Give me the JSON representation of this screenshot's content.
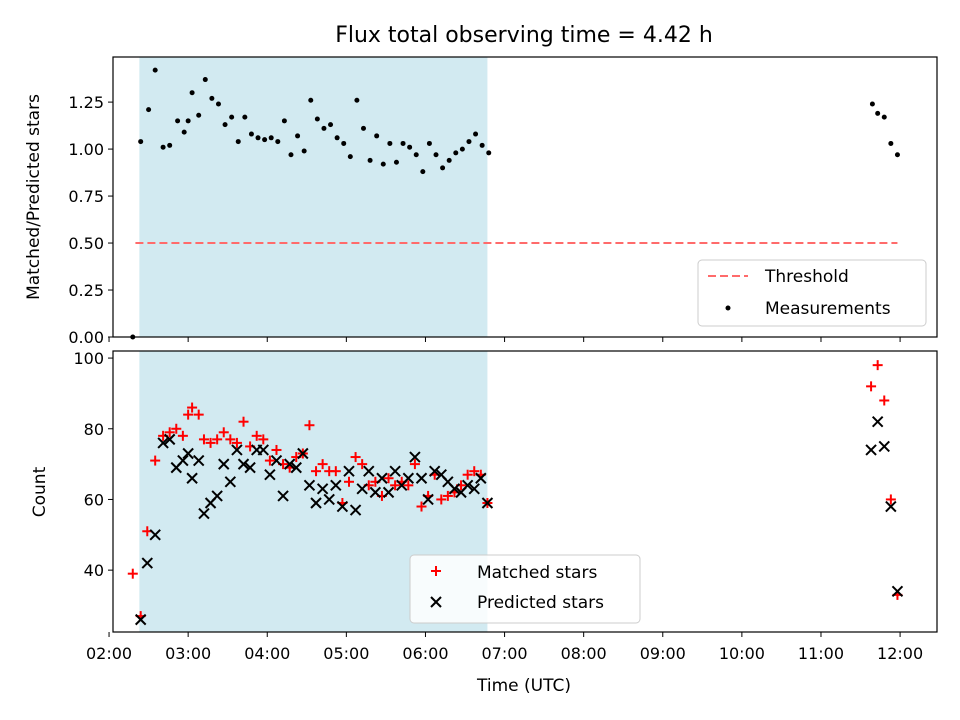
{
  "title": "Flux total observing time = 4.42 h",
  "colors": {
    "threshold": "#ff6b6b",
    "band": "#add8e6",
    "matched": "#ff0000",
    "predicted": "#000000"
  },
  "shaded_interval": [
    "02:23",
    "06:47"
  ],
  "chart_data": [
    {
      "type": "scatter",
      "ylabel": "Matched/Predicted stars",
      "xlim": [
        "02:03",
        "12:28"
      ],
      "ylim": [
        0,
        1.49
      ],
      "yticks": [
        "0.00",
        "0.25",
        "0.50",
        "0.75",
        "1.00",
        "1.25"
      ],
      "grid": false,
      "legend_position": "lower-right",
      "threshold": {
        "name": "Threshold",
        "y": 0.5,
        "x_range": [
          "02:20",
          "11:58"
        ]
      },
      "series": [
        {
          "name": "Measurements",
          "points": [
            [
              "02:18",
              0.0
            ],
            [
              "02:24",
              1.04
            ],
            [
              "02:30",
              1.21
            ],
            [
              "02:35",
              1.42
            ],
            [
              "02:41",
              1.01
            ],
            [
              "02:46",
              1.02
            ],
            [
              "02:52",
              1.15
            ],
            [
              "02:57",
              1.09
            ],
            [
              "03:00",
              1.15
            ],
            [
              "03:03",
              1.3
            ],
            [
              "03:08",
              1.18
            ],
            [
              "03:13",
              1.37
            ],
            [
              "03:18",
              1.27
            ],
            [
              "03:23",
              1.24
            ],
            [
              "03:28",
              1.13
            ],
            [
              "03:33",
              1.17
            ],
            [
              "03:38",
              1.04
            ],
            [
              "03:43",
              1.17
            ],
            [
              "03:48",
              1.08
            ],
            [
              "03:53",
              1.06
            ],
            [
              "03:58",
              1.05
            ],
            [
              "04:03",
              1.06
            ],
            [
              "04:08",
              1.04
            ],
            [
              "04:13",
              1.15
            ],
            [
              "04:18",
              0.97
            ],
            [
              "04:23",
              1.07
            ],
            [
              "04:28",
              0.99
            ],
            [
              "04:33",
              1.26
            ],
            [
              "04:38",
              1.16
            ],
            [
              "04:43",
              1.11
            ],
            [
              "04:48",
              1.13
            ],
            [
              "04:53",
              1.06
            ],
            [
              "04:58",
              1.03
            ],
            [
              "05:03",
              0.96
            ],
            [
              "05:08",
              1.26
            ],
            [
              "05:13",
              1.11
            ],
            [
              "05:18",
              0.94
            ],
            [
              "05:23",
              1.07
            ],
            [
              "05:28",
              0.92
            ],
            [
              "05:33",
              1.03
            ],
            [
              "05:38",
              0.93
            ],
            [
              "05:43",
              1.03
            ],
            [
              "05:48",
              1.01
            ],
            [
              "05:53",
              0.97
            ],
            [
              "05:58",
              0.88
            ],
            [
              "06:03",
              1.03
            ],
            [
              "06:08",
              0.97
            ],
            [
              "06:13",
              0.9
            ],
            [
              "06:18",
              0.94
            ],
            [
              "06:23",
              0.98
            ],
            [
              "06:28",
              1.0
            ],
            [
              "06:33",
              1.04
            ],
            [
              "06:38",
              1.08
            ],
            [
              "06:43",
              1.02
            ],
            [
              "06:48",
              0.98
            ],
            [
              "11:39",
              1.24
            ],
            [
              "11:43",
              1.19
            ],
            [
              "11:48",
              1.17
            ],
            [
              "11:53",
              1.03
            ],
            [
              "11:58",
              0.97
            ]
          ]
        }
      ]
    },
    {
      "type": "scatter",
      "ylabel": "Count",
      "xlabel": "Time (UTC)",
      "xlim": [
        "02:03",
        "12:28"
      ],
      "ylim": [
        22.5,
        102
      ],
      "yticks": [
        "40",
        "60",
        "80",
        "100"
      ],
      "xticks": [
        "02:00",
        "03:00",
        "04:00",
        "05:00",
        "06:00",
        "07:00",
        "08:00",
        "09:00",
        "10:00",
        "11:00",
        "12:00"
      ],
      "grid": false,
      "legend_position": "lower-center",
      "series": [
        {
          "name": "Matched stars",
          "marker": "plus",
          "points": [
            [
              "02:18",
              39
            ],
            [
              "02:24",
              27
            ],
            [
              "02:29",
              51
            ],
            [
              "02:35",
              71
            ],
            [
              "02:41",
              78
            ],
            [
              "02:46",
              79
            ],
            [
              "02:51",
              80
            ],
            [
              "02:56",
              78
            ],
            [
              "03:00",
              84
            ],
            [
              "03:03",
              86
            ],
            [
              "03:08",
              84
            ],
            [
              "03:12",
              77
            ],
            [
              "03:17",
              76
            ],
            [
              "03:22",
              77
            ],
            [
              "03:27",
              79
            ],
            [
              "03:32",
              77
            ],
            [
              "03:37",
              76
            ],
            [
              "03:42",
              82
            ],
            [
              "03:47",
              75
            ],
            [
              "03:52",
              78
            ],
            [
              "03:57",
              77
            ],
            [
              "04:02",
              71
            ],
            [
              "04:07",
              74
            ],
            [
              "04:12",
              70
            ],
            [
              "04:17",
              69
            ],
            [
              "04:22",
              72
            ],
            [
              "04:27",
              73
            ],
            [
              "04:32",
              81
            ],
            [
              "04:37",
              68
            ],
            [
              "04:42",
              70
            ],
            [
              "04:47",
              68
            ],
            [
              "04:52",
              68
            ],
            [
              "04:57",
              59
            ],
            [
              "05:02",
              65
            ],
            [
              "05:07",
              72
            ],
            [
              "05:12",
              70
            ],
            [
              "05:17",
              64
            ],
            [
              "05:22",
              65
            ],
            [
              "05:27",
              61
            ],
            [
              "05:32",
              66
            ],
            [
              "05:37",
              64
            ],
            [
              "05:42",
              65
            ],
            [
              "05:47",
              64
            ],
            [
              "05:52",
              70
            ],
            [
              "05:57",
              58
            ],
            [
              "06:02",
              61
            ],
            [
              "06:07",
              67
            ],
            [
              "06:12",
              60
            ],
            [
              "06:17",
              61
            ],
            [
              "06:22",
              62
            ],
            [
              "06:27",
              64
            ],
            [
              "06:32",
              67
            ],
            [
              "06:37",
              68
            ],
            [
              "06:42",
              67
            ],
            [
              "06:47",
              59
            ],
            [
              "11:38",
              92
            ],
            [
              "11:43",
              98
            ],
            [
              "11:48",
              88
            ],
            [
              "11:53",
              60
            ],
            [
              "11:58",
              33
            ]
          ]
        },
        {
          "name": "Predicted stars",
          "marker": "x",
          "points": [
            [
              "02:24",
              26
            ],
            [
              "02:29",
              42
            ],
            [
              "02:35",
              50
            ],
            [
              "02:41",
              76
            ],
            [
              "02:46",
              77
            ],
            [
              "02:51",
              69
            ],
            [
              "02:56",
              71
            ],
            [
              "03:00",
              73
            ],
            [
              "03:03",
              66
            ],
            [
              "03:08",
              71
            ],
            [
              "03:12",
              56
            ],
            [
              "03:17",
              59
            ],
            [
              "03:22",
              61
            ],
            [
              "03:27",
              70
            ],
            [
              "03:32",
              65
            ],
            [
              "03:37",
              74
            ],
            [
              "03:42",
              70
            ],
            [
              "03:47",
              69
            ],
            [
              "03:52",
              74
            ],
            [
              "03:57",
              74
            ],
            [
              "04:02",
              67
            ],
            [
              "04:07",
              71
            ],
            [
              "04:12",
              61
            ],
            [
              "04:17",
              70
            ],
            [
              "04:22",
              69
            ],
            [
              "04:27",
              73
            ],
            [
              "04:32",
              64
            ],
            [
              "04:37",
              59
            ],
            [
              "04:42",
              63
            ],
            [
              "04:47",
              60
            ],
            [
              "04:52",
              64
            ],
            [
              "04:57",
              58
            ],
            [
              "05:02",
              68
            ],
            [
              "05:07",
              57
            ],
            [
              "05:12",
              63
            ],
            [
              "05:17",
              68
            ],
            [
              "05:22",
              62
            ],
            [
              "05:27",
              66
            ],
            [
              "05:32",
              62
            ],
            [
              "05:37",
              68
            ],
            [
              "05:42",
              64
            ],
            [
              "05:47",
              66
            ],
            [
              "05:52",
              72
            ],
            [
              "05:57",
              66
            ],
            [
              "06:02",
              60
            ],
            [
              "06:07",
              68
            ],
            [
              "06:12",
              67
            ],
            [
              "06:17",
              65
            ],
            [
              "06:22",
              63
            ],
            [
              "06:27",
              62
            ],
            [
              "06:32",
              64
            ],
            [
              "06:37",
              63
            ],
            [
              "06:42",
              66
            ],
            [
              "06:47",
              59
            ],
            [
              "11:38",
              74
            ],
            [
              "11:43",
              82
            ],
            [
              "11:48",
              75
            ],
            [
              "11:53",
              58
            ],
            [
              "11:58",
              34
            ]
          ]
        }
      ]
    }
  ]
}
